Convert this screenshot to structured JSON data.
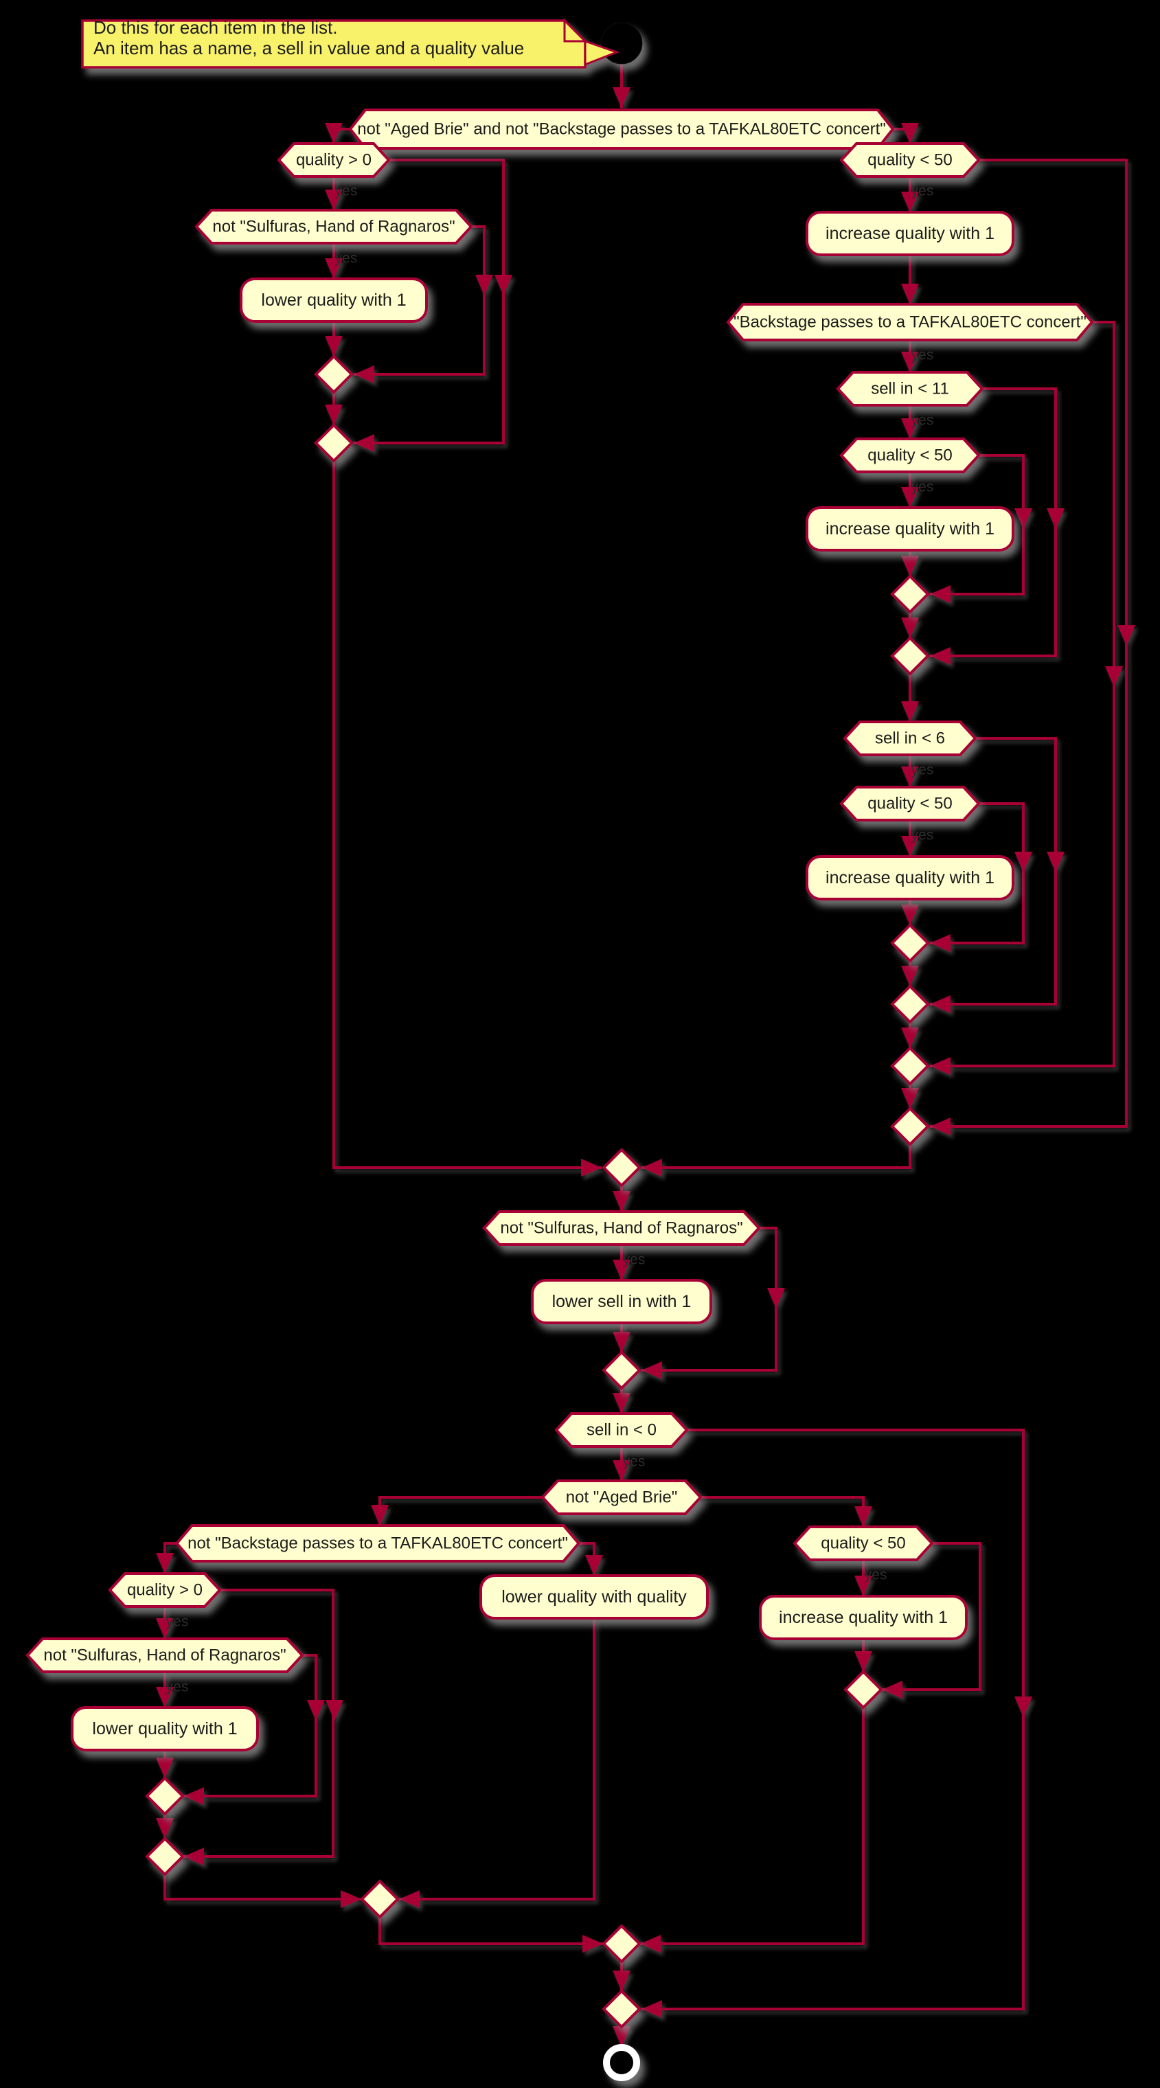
{
  "note": {
    "line1": "Do this for each item in the list.",
    "line2": "An item has a name, a sell in value and a quality value"
  },
  "edge_label_yes": "yes",
  "colors": {
    "background": "#000000",
    "line": "#A80036",
    "shape_fill": "#FEFECE",
    "note_fill": "#F8F16A",
    "text": "#1A1A1A",
    "ghost_label": "#2C2C2C",
    "end_ring": "#FFFFFF",
    "start_fill": "#050505",
    "shadow": "#8A8A8A"
  },
  "nodes": {
    "cond_main": {
      "label": "not \"Aged Brie\" and not \"Backstage passes to a TAFKAL80ETC concert\""
    },
    "q_gt_0_a": {
      "label": "quality > 0"
    },
    "not_sulfuras_a": {
      "label": "not \"Sulfuras, Hand of Ragnaros\""
    },
    "lower_quality_a": {
      "label": "lower quality with 1"
    },
    "q_lt_50_a": {
      "label": "quality < 50"
    },
    "inc_quality_a": {
      "label": "increase quality with 1"
    },
    "backstage": {
      "label": "\"Backstage passes to a TAFKAL80ETC concert\""
    },
    "sell_lt_11": {
      "label": "sell in < 11"
    },
    "q_lt_50_b": {
      "label": "quality < 50"
    },
    "inc_quality_b": {
      "label": "increase quality with 1"
    },
    "sell_lt_6": {
      "label": "sell in < 6"
    },
    "q_lt_50_c": {
      "label": "quality < 50"
    },
    "inc_quality_c": {
      "label": "increase quality with 1"
    },
    "not_sulfuras_b": {
      "label": "not \"Sulfuras, Hand of Ragnaros\""
    },
    "lower_sell_in": {
      "label": "lower sell in with 1"
    },
    "sell_lt_0": {
      "label": "sell in < 0"
    },
    "not_aged_brie": {
      "label": "not \"Aged Brie\""
    },
    "not_backstage_b": {
      "label": "not \"Backstage passes to a TAFKAL80ETC concert\""
    },
    "q_gt_0_b": {
      "label": "quality > 0"
    },
    "not_sulfuras_c": {
      "label": "not \"Sulfuras, Hand of Ragnaros\""
    },
    "lower_quality_b": {
      "label": "lower quality with 1"
    },
    "lower_q_with_q": {
      "label": "lower quality with quality"
    },
    "q_lt_50_d": {
      "label": "quality < 50"
    },
    "inc_quality_d": {
      "label": "increase quality with 1"
    }
  }
}
